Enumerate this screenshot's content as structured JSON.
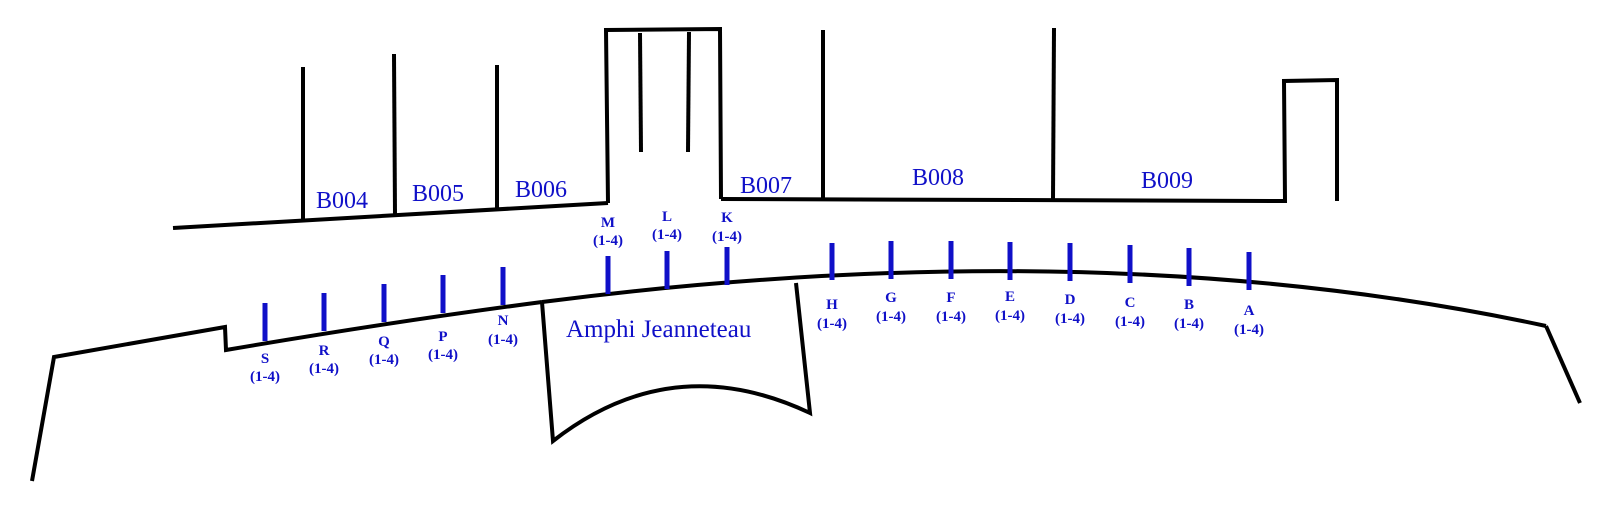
{
  "colors": {
    "walls": "#000000",
    "labels": "#1010c8",
    "posts": "#1010c8",
    "background": "#ffffff"
  },
  "rooms": [
    {
      "id": "b004",
      "label": "B004"
    },
    {
      "id": "b005",
      "label": "B005"
    },
    {
      "id": "b006",
      "label": "B006"
    },
    {
      "id": "b007",
      "label": "B007"
    },
    {
      "id": "b008",
      "label": "B008"
    },
    {
      "id": "b009",
      "label": "B009"
    }
  ],
  "amphi": {
    "label": "Amphi Jeanneteau"
  },
  "posts": [
    {
      "letter": "S",
      "range": "(1-4)"
    },
    {
      "letter": "R",
      "range": "(1-4)"
    },
    {
      "letter": "Q",
      "range": "(1-4)"
    },
    {
      "letter": "P",
      "range": "(1-4)"
    },
    {
      "letter": "N",
      "range": "(1-4)"
    },
    {
      "letter": "M",
      "range": "(1-4)"
    },
    {
      "letter": "L",
      "range": "(1-4)"
    },
    {
      "letter": "K",
      "range": "(1-4)"
    },
    {
      "letter": "H",
      "range": "(1-4)"
    },
    {
      "letter": "G",
      "range": "(1-4)"
    },
    {
      "letter": "F",
      "range": "(1-4)"
    },
    {
      "letter": "E",
      "range": "(1-4)"
    },
    {
      "letter": "D",
      "range": "(1-4)"
    },
    {
      "letter": "C",
      "range": "(1-4)"
    },
    {
      "letter": "B",
      "range": "(1-4)"
    },
    {
      "letter": "A",
      "range": "(1-4)"
    }
  ]
}
